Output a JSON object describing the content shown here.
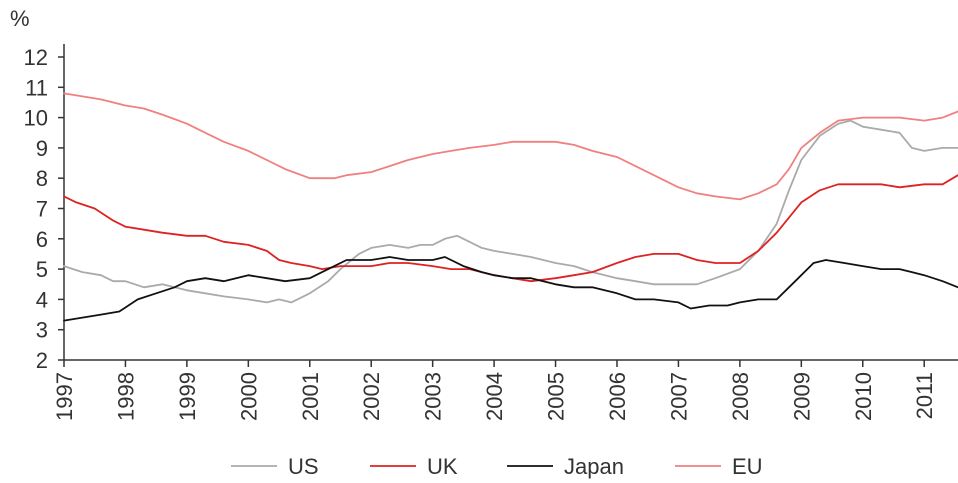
{
  "chart_data": {
    "type": "line",
    "ylabel": "%",
    "ylim": [
      2,
      12
    ],
    "yticks": [
      2,
      3,
      4,
      5,
      6,
      7,
      8,
      9,
      10,
      11,
      12
    ],
    "xlim": [
      1997,
      2011.55
    ],
    "xticks": [
      "1997",
      "1998",
      "1999",
      "2000",
      "2001",
      "2002",
      "2003",
      "2004",
      "2005",
      "2006",
      "2007",
      "2008",
      "2009",
      "2010",
      "2011"
    ],
    "grid": false,
    "legend_position": "bottom",
    "series": [
      {
        "name": "US",
        "color": "#aaaaaa",
        "x": [
          1997.0,
          1997.3,
          1997.6,
          1997.8,
          1998.0,
          1998.3,
          1998.6,
          1999.0,
          1999.3,
          1999.6,
          2000.0,
          2000.3,
          2000.5,
          2000.7,
          2001.0,
          2001.3,
          2001.5,
          2001.8,
          2002.0,
          2002.3,
          2002.6,
          2002.8,
          2003.0,
          2003.2,
          2003.4,
          2003.6,
          2003.8,
          2004.0,
          2004.3,
          2004.6,
          2005.0,
          2005.3,
          2005.6,
          2006.0,
          2006.3,
          2006.6,
          2007.0,
          2007.3,
          2007.6,
          2008.0,
          2008.3,
          2008.6,
          2008.8,
          2009.0,
          2009.3,
          2009.6,
          2009.8,
          2010.0,
          2010.3,
          2010.6,
          2010.8,
          2011.0,
          2011.3,
          2011.55
        ],
        "values": [
          5.1,
          4.9,
          4.8,
          4.6,
          4.6,
          4.4,
          4.5,
          4.3,
          4.2,
          4.1,
          4.0,
          3.9,
          4.0,
          3.9,
          4.2,
          4.6,
          5.0,
          5.5,
          5.7,
          5.8,
          5.7,
          5.8,
          5.8,
          6.0,
          6.1,
          5.9,
          5.7,
          5.6,
          5.5,
          5.4,
          5.2,
          5.1,
          4.9,
          4.7,
          4.6,
          4.5,
          4.5,
          4.5,
          4.7,
          5.0,
          5.6,
          6.5,
          7.6,
          8.6,
          9.4,
          9.8,
          9.9,
          9.7,
          9.6,
          9.5,
          9.0,
          8.9,
          9.0,
          9.0
        ]
      },
      {
        "name": "UK",
        "color": "#dd2222",
        "x": [
          1997.0,
          1997.2,
          1997.5,
          1997.8,
          1998.0,
          1998.3,
          1998.6,
          1999.0,
          1999.3,
          1999.6,
          2000.0,
          2000.3,
          2000.5,
          2000.7,
          2001.0,
          2001.2,
          2001.5,
          2001.8,
          2002.0,
          2002.3,
          2002.6,
          2003.0,
          2003.3,
          2003.6,
          2004.0,
          2004.3,
          2004.6,
          2005.0,
          2005.3,
          2005.6,
          2006.0,
          2006.3,
          2006.6,
          2007.0,
          2007.3,
          2007.6,
          2008.0,
          2008.3,
          2008.6,
          2008.8,
          2009.0,
          2009.3,
          2009.6,
          2010.0,
          2010.3,
          2010.6,
          2011.0,
          2011.3,
          2011.55
        ],
        "values": [
          7.4,
          7.2,
          7.0,
          6.6,
          6.4,
          6.3,
          6.2,
          6.1,
          6.1,
          5.9,
          5.8,
          5.6,
          5.3,
          5.2,
          5.1,
          5.0,
          5.1,
          5.1,
          5.1,
          5.2,
          5.2,
          5.1,
          5.0,
          5.0,
          4.8,
          4.7,
          4.6,
          4.7,
          4.8,
          4.9,
          5.2,
          5.4,
          5.5,
          5.5,
          5.3,
          5.2,
          5.2,
          5.6,
          6.2,
          6.7,
          7.2,
          7.6,
          7.8,
          7.8,
          7.8,
          7.7,
          7.8,
          7.8,
          8.1
        ]
      },
      {
        "name": "Japan",
        "color": "#111111",
        "x": [
          1997.0,
          1997.3,
          1997.6,
          1997.9,
          1998.2,
          1998.5,
          1998.8,
          1999.0,
          1999.3,
          1999.6,
          2000.0,
          2000.3,
          2000.6,
          2001.0,
          2001.3,
          2001.6,
          2002.0,
          2002.3,
          2002.6,
          2003.0,
          2003.2,
          2003.5,
          2003.8,
          2004.0,
          2004.3,
          2004.6,
          2005.0,
          2005.3,
          2005.6,
          2006.0,
          2006.3,
          2006.6,
          2007.0,
          2007.2,
          2007.5,
          2007.8,
          2008.0,
          2008.3,
          2008.6,
          2008.9,
          2009.2,
          2009.4,
          2009.7,
          2010.0,
          2010.3,
          2010.6,
          2010.8,
          2011.0,
          2011.3,
          2011.55
        ],
        "values": [
          3.3,
          3.4,
          3.5,
          3.6,
          4.0,
          4.2,
          4.4,
          4.6,
          4.7,
          4.6,
          4.8,
          4.7,
          4.6,
          4.7,
          5.0,
          5.3,
          5.3,
          5.4,
          5.3,
          5.3,
          5.4,
          5.1,
          4.9,
          4.8,
          4.7,
          4.7,
          4.5,
          4.4,
          4.4,
          4.2,
          4.0,
          4.0,
          3.9,
          3.7,
          3.8,
          3.8,
          3.9,
          4.0,
          4.0,
          4.6,
          5.2,
          5.3,
          5.2,
          5.1,
          5.0,
          5.0,
          4.9,
          4.8,
          4.6,
          4.4
        ]
      },
      {
        "name": "EU",
        "color": "#f08080",
        "x": [
          1997.0,
          1997.3,
          1997.6,
          1998.0,
          1998.3,
          1998.6,
          1999.0,
          1999.3,
          1999.6,
          2000.0,
          2000.3,
          2000.6,
          2001.0,
          2001.2,
          2001.4,
          2001.6,
          2002.0,
          2002.3,
          2002.6,
          2003.0,
          2003.3,
          2003.6,
          2004.0,
          2004.3,
          2004.6,
          2005.0,
          2005.3,
          2005.6,
          2006.0,
          2006.3,
          2006.6,
          2007.0,
          2007.3,
          2007.6,
          2008.0,
          2008.3,
          2008.6,
          2008.8,
          2009.0,
          2009.3,
          2009.6,
          2010.0,
          2010.3,
          2010.6,
          2011.0,
          2011.3,
          2011.55
        ],
        "values": [
          10.8,
          10.7,
          10.6,
          10.4,
          10.3,
          10.1,
          9.8,
          9.5,
          9.2,
          8.9,
          8.6,
          8.3,
          8.0,
          8.0,
          8.0,
          8.1,
          8.2,
          8.4,
          8.6,
          8.8,
          8.9,
          9.0,
          9.1,
          9.2,
          9.2,
          9.2,
          9.1,
          8.9,
          8.7,
          8.4,
          8.1,
          7.7,
          7.5,
          7.4,
          7.3,
          7.5,
          7.8,
          8.3,
          9.0,
          9.5,
          9.9,
          10.0,
          10.0,
          10.0,
          9.9,
          10.0,
          10.2
        ]
      }
    ]
  }
}
